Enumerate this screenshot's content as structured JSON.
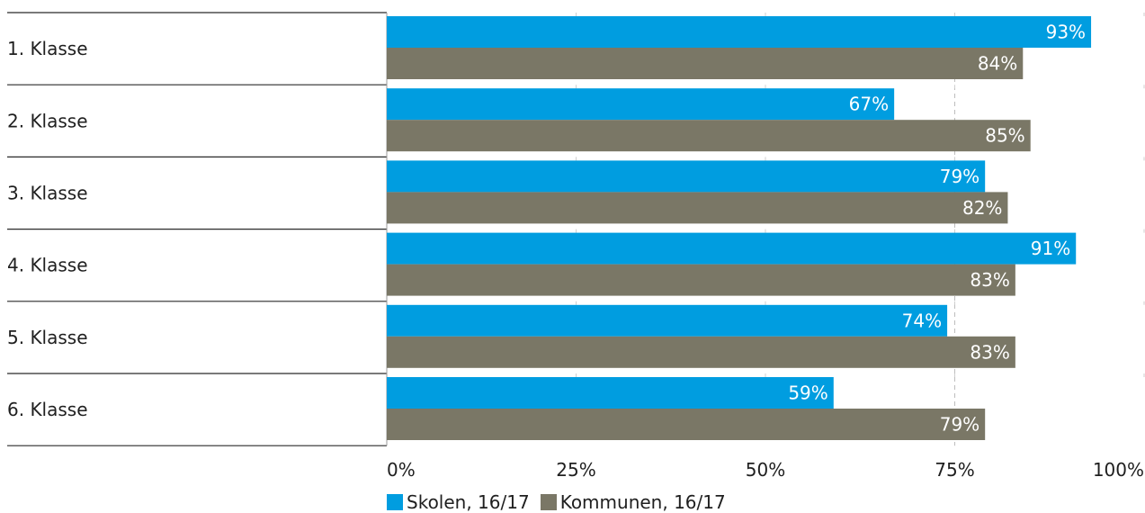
{
  "chart_data": {
    "type": "bar",
    "orientation": "horizontal",
    "categories": [
      "1. Klasse",
      "2. Klasse",
      "3. Klasse",
      "4. Klasse",
      "5. Klasse",
      "6. Klasse"
    ],
    "series": [
      {
        "name": "Skolen, 16/17",
        "color": "#009de0",
        "values": [
          93,
          67,
          79,
          91,
          74,
          59
        ],
        "labels": [
          "93%",
          "67%",
          "79%",
          "91%",
          "74%",
          "59%"
        ]
      },
      {
        "name": "Kommunen, 16/17",
        "color": "#7a7766",
        "values": [
          84,
          85,
          82,
          83,
          83,
          79
        ],
        "labels": [
          "84%",
          "85%",
          "82%",
          "83%",
          "83%",
          "79%"
        ]
      }
    ],
    "xlim": [
      0,
      100
    ],
    "xticks": [
      0,
      25,
      50,
      75,
      100
    ],
    "xtick_labels": [
      "0%",
      "25%",
      "50%",
      "75%",
      "100%"
    ],
    "reference_line": 75,
    "legend_position": "bottom-center"
  }
}
